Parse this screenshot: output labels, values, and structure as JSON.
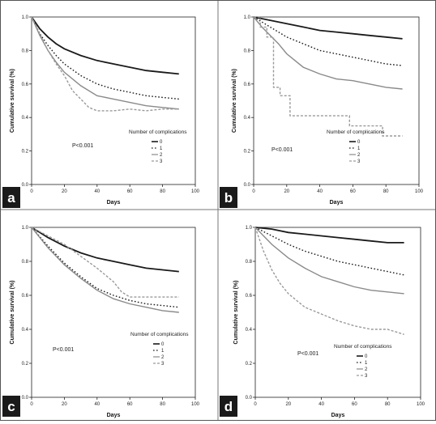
{
  "panel_labels": [
    "a",
    "b",
    "c",
    "d"
  ],
  "chart_data": [
    {
      "type": "line",
      "panel": "a",
      "ylabel": "Cumulative survival (%)",
      "xlabel": "Days",
      "xlim": [
        0,
        100
      ],
      "ylim": [
        0,
        1.0
      ],
      "x_ticks": [
        "0",
        "20",
        "40",
        "60",
        "80",
        "100"
      ],
      "y_ticks": [
        "0.0",
        "0.2",
        "0.4",
        "0.6",
        "0.8",
        "1.0"
      ],
      "p_value": "P<0.001",
      "legend_title": "Number of complications",
      "legend": [
        "0",
        "1",
        "2",
        "3"
      ],
      "series": [
        {
          "name": "0",
          "color": "#1a1a1a",
          "style": "solid",
          "x": [
            0,
            5,
            10,
            15,
            20,
            30,
            40,
            50,
            60,
            70,
            80,
            90
          ],
          "y": [
            1.0,
            0.93,
            0.88,
            0.84,
            0.81,
            0.77,
            0.74,
            0.72,
            0.7,
            0.68,
            0.67,
            0.66
          ]
        },
        {
          "name": "1",
          "color": "#1a1a1a",
          "style": "dotted",
          "x": [
            0,
            5,
            10,
            15,
            20,
            30,
            40,
            50,
            60,
            70,
            80,
            90
          ],
          "y": [
            1.0,
            0.9,
            0.83,
            0.77,
            0.72,
            0.65,
            0.6,
            0.57,
            0.55,
            0.53,
            0.52,
            0.51
          ]
        },
        {
          "name": "2",
          "color": "#8a8a8a",
          "style": "solid",
          "x": [
            0,
            5,
            10,
            15,
            20,
            30,
            40,
            50,
            60,
            70,
            80,
            90
          ],
          "y": [
            1.0,
            0.89,
            0.8,
            0.73,
            0.67,
            0.59,
            0.53,
            0.51,
            0.49,
            0.47,
            0.46,
            0.45
          ]
        },
        {
          "name": "3",
          "color": "#9a9a9a",
          "style": "dashed",
          "x": [
            0,
            5,
            10,
            15,
            20,
            25,
            30,
            35,
            40,
            50,
            60,
            70,
            80,
            90
          ],
          "y": [
            1.0,
            0.9,
            0.8,
            0.72,
            0.65,
            0.56,
            0.51,
            0.46,
            0.44,
            0.44,
            0.45,
            0.44,
            0.45,
            0.45
          ]
        }
      ]
    },
    {
      "type": "line",
      "panel": "b",
      "ylabel": "Cumulative survival (%)",
      "xlabel": "Days",
      "xlim": [
        0,
        100
      ],
      "ylim": [
        0,
        1.0
      ],
      "x_ticks": [
        "0",
        "20",
        "40",
        "60",
        "80",
        "100"
      ],
      "y_ticks": [
        "0.0",
        "0.2",
        "0.4",
        "0.6",
        "0.8",
        "1.0"
      ],
      "p_value": "P<0.001",
      "legend_title": "Number of complications",
      "legend": [
        "0",
        "1",
        "2",
        "3"
      ],
      "series": [
        {
          "name": "0",
          "color": "#1a1a1a",
          "style": "solid",
          "x": [
            0,
            10,
            20,
            30,
            40,
            50,
            60,
            70,
            80,
            90
          ],
          "y": [
            1.0,
            0.98,
            0.96,
            0.94,
            0.92,
            0.91,
            0.9,
            0.89,
            0.88,
            0.87
          ]
        },
        {
          "name": "1",
          "color": "#1a1a1a",
          "style": "dotted",
          "x": [
            0,
            10,
            20,
            30,
            40,
            50,
            60,
            70,
            80,
            90
          ],
          "y": [
            1.0,
            0.94,
            0.88,
            0.84,
            0.8,
            0.78,
            0.76,
            0.74,
            0.72,
            0.71
          ]
        },
        {
          "name": "2",
          "color": "#8a8a8a",
          "style": "solid",
          "x": [
            0,
            5,
            10,
            15,
            20,
            30,
            40,
            50,
            60,
            70,
            80,
            90
          ],
          "y": [
            1.0,
            0.94,
            0.89,
            0.84,
            0.78,
            0.7,
            0.66,
            0.63,
            0.62,
            0.6,
            0.58,
            0.57
          ]
        },
        {
          "name": "3",
          "color": "#9a9a9a",
          "style": "dashed",
          "x": [
            0,
            4,
            4,
            8,
            8,
            12,
            12,
            16,
            16,
            22,
            22,
            58,
            58,
            78,
            78,
            90
          ],
          "y": [
            1.0,
            1.0,
            0.94,
            0.94,
            0.88,
            0.88,
            0.58,
            0.58,
            0.53,
            0.53,
            0.41,
            0.41,
            0.35,
            0.35,
            0.29,
            0.29
          ]
        }
      ]
    },
    {
      "type": "line",
      "panel": "c",
      "ylabel": "Cumulative survival (%)",
      "xlabel": "Days",
      "xlim": [
        0,
        100
      ],
      "ylim": [
        0,
        1.0
      ],
      "x_ticks": [
        "0",
        "20",
        "40",
        "60",
        "80",
        "100"
      ],
      "y_ticks": [
        "0.0",
        "0.2",
        "0.4",
        "0.6",
        "0.8",
        "1.0"
      ],
      "p_value": "P<0.001",
      "legend_title": "Number of complications",
      "legend": [
        "0",
        "1",
        "2",
        "3"
      ],
      "series": [
        {
          "name": "0",
          "color": "#1a1a1a",
          "style": "solid",
          "x": [
            0,
            10,
            20,
            30,
            40,
            50,
            60,
            70,
            80,
            90
          ],
          "y": [
            1.0,
            0.94,
            0.89,
            0.85,
            0.82,
            0.8,
            0.78,
            0.76,
            0.75,
            0.74
          ]
        },
        {
          "name": "1",
          "color": "#1a1a1a",
          "style": "dotted",
          "x": [
            0,
            10,
            20,
            30,
            40,
            50,
            60,
            70,
            80,
            90
          ],
          "y": [
            1.0,
            0.89,
            0.79,
            0.71,
            0.64,
            0.6,
            0.57,
            0.55,
            0.54,
            0.53
          ]
        },
        {
          "name": "2",
          "color": "#8a8a8a",
          "style": "solid",
          "x": [
            0,
            10,
            20,
            30,
            40,
            50,
            60,
            70,
            80,
            90
          ],
          "y": [
            1.0,
            0.88,
            0.78,
            0.7,
            0.63,
            0.58,
            0.55,
            0.53,
            0.51,
            0.5
          ]
        },
        {
          "name": "3",
          "color": "#9a9a9a",
          "style": "dashed",
          "x": [
            0,
            10,
            20,
            30,
            40,
            45,
            50,
            55,
            60,
            70,
            80,
            90
          ],
          "y": [
            1.0,
            0.95,
            0.9,
            0.83,
            0.76,
            0.72,
            0.68,
            0.62,
            0.59,
            0.59,
            0.59,
            0.59
          ]
        }
      ]
    },
    {
      "type": "line",
      "panel": "d",
      "ylabel": "Cumulative survival (%)",
      "xlabel": "Days",
      "xlim": [
        0,
        100
      ],
      "ylim": [
        0,
        1.0
      ],
      "x_ticks": [
        "0",
        "20",
        "40",
        "60",
        "80",
        "100"
      ],
      "y_ticks": [
        "0.0",
        "0.2",
        "0.4",
        "0.6",
        "0.8",
        "1.0"
      ],
      "p_value": "P<0.001",
      "legend_title": "Number of complications",
      "legend": [
        "0",
        "1",
        "2",
        "3"
      ],
      "series": [
        {
          "name": "0",
          "color": "#1a1a1a",
          "style": "solid",
          "x": [
            0,
            10,
            20,
            30,
            40,
            50,
            60,
            70,
            80,
            90
          ],
          "y": [
            1.0,
            0.99,
            0.97,
            0.96,
            0.95,
            0.94,
            0.93,
            0.92,
            0.91,
            0.91
          ]
        },
        {
          "name": "1",
          "color": "#1a1a1a",
          "style": "dotted",
          "x": [
            0,
            10,
            20,
            30,
            40,
            50,
            60,
            70,
            80,
            90
          ],
          "y": [
            1.0,
            0.95,
            0.9,
            0.86,
            0.83,
            0.8,
            0.78,
            0.76,
            0.74,
            0.72
          ]
        },
        {
          "name": "2",
          "color": "#8a8a8a",
          "style": "solid",
          "x": [
            0,
            10,
            20,
            30,
            40,
            50,
            60,
            70,
            80,
            90
          ],
          "y": [
            1.0,
            0.9,
            0.82,
            0.76,
            0.71,
            0.68,
            0.65,
            0.63,
            0.62,
            0.61
          ]
        },
        {
          "name": "3",
          "color": "#9a9a9a",
          "style": "dashed",
          "x": [
            0,
            5,
            10,
            15,
            20,
            30,
            40,
            50,
            60,
            70,
            80,
            90
          ],
          "y": [
            1.0,
            0.86,
            0.75,
            0.67,
            0.61,
            0.53,
            0.49,
            0.45,
            0.42,
            0.4,
            0.4,
            0.37
          ]
        }
      ]
    }
  ]
}
